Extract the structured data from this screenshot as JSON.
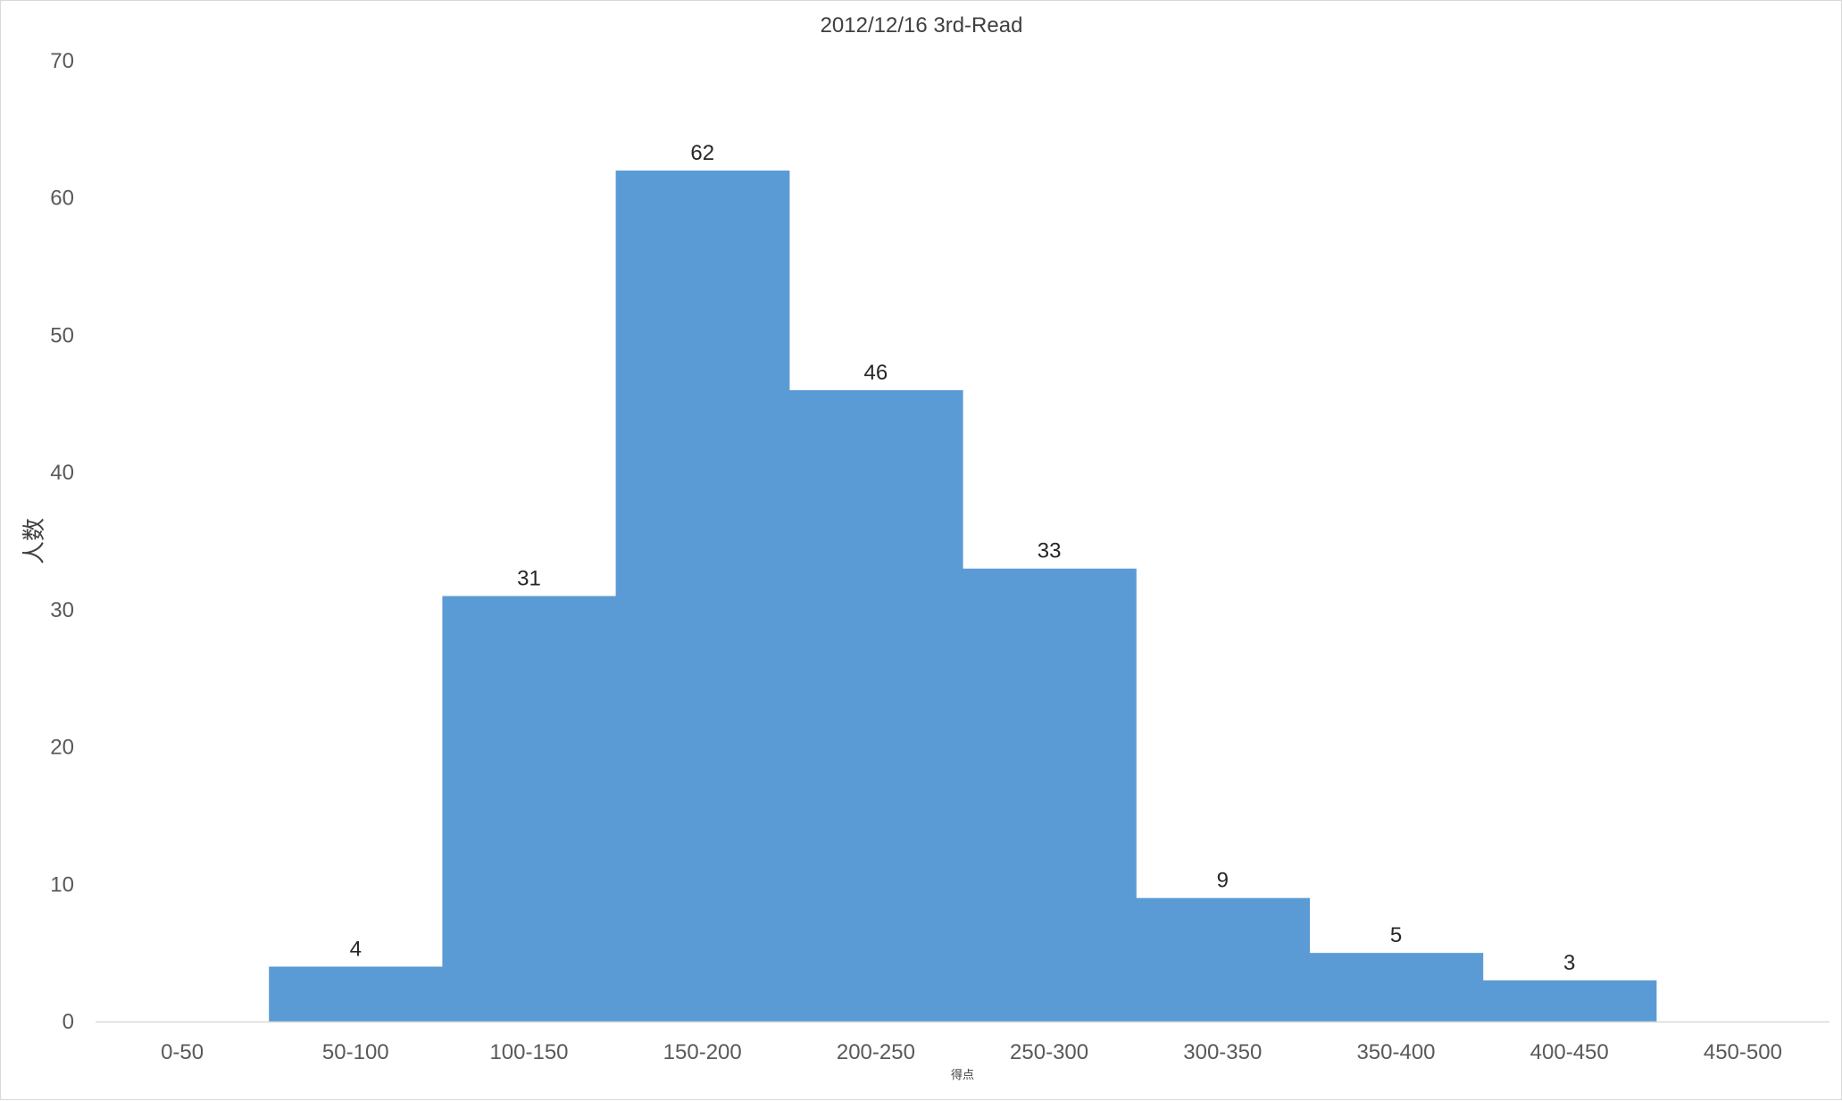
{
  "chart_data": {
    "type": "bar",
    "title": "2012/12/16 3rd-Read",
    "xlabel": "得点",
    "ylabel": "人数",
    "categories": [
      "0-50",
      "50-100",
      "100-150",
      "150-200",
      "200-250",
      "250-300",
      "300-350",
      "350-400",
      "400-450",
      "450-500"
    ],
    "values": [
      0,
      4,
      31,
      62,
      46,
      33,
      9,
      5,
      3,
      0
    ],
    "data_labels": [
      "",
      "4",
      "31",
      "62",
      "46",
      "33",
      "9",
      "5",
      "3",
      ""
    ],
    "ylim": [
      0,
      70
    ],
    "yticks": [
      "0",
      "10",
      "20",
      "30",
      "40",
      "50",
      "60",
      "70"
    ],
    "grid": false,
    "legend": "none",
    "colors": {
      "bar": "#5b9bd5",
      "axis_line": "#d9d9d9"
    }
  }
}
